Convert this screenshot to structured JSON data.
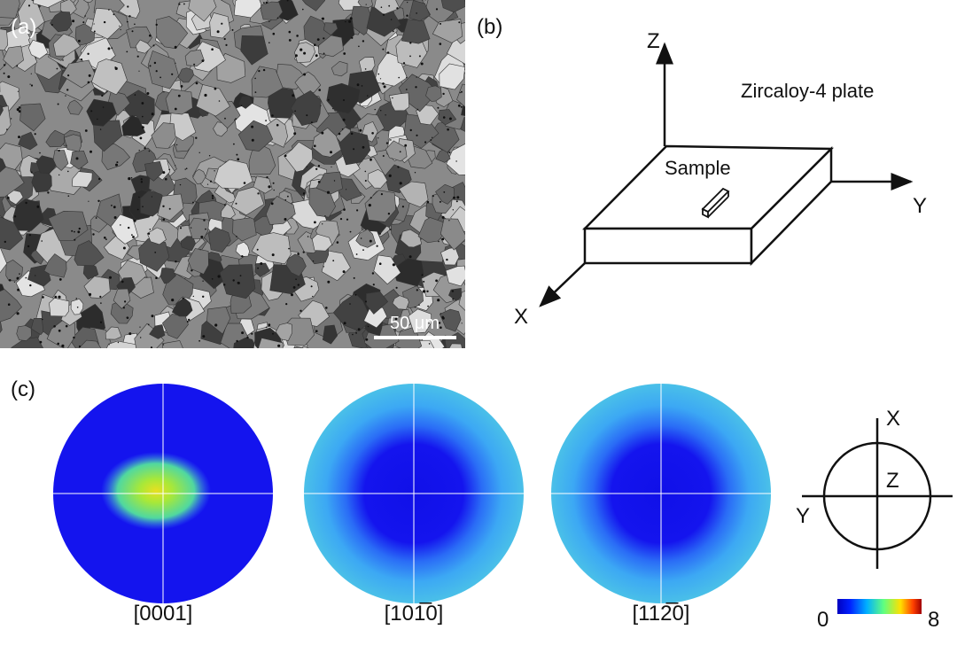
{
  "panel_a": {
    "label": "(a)",
    "scale_bar": "50 μm"
  },
  "panel_b": {
    "label": "(b)",
    "plate": "Zircaloy-4 plate",
    "sample": "Sample",
    "axes": {
      "x": "X",
      "y": "Y",
      "z": "Z"
    }
  },
  "panel_c": {
    "label": "(c)",
    "pole_figures": [
      "[0001]",
      "[101̅0]",
      "[112̅0]"
    ],
    "reference": {
      "x": "X",
      "y": "Y",
      "z": "Z"
    },
    "colorbar": {
      "min": 0,
      "max": 8
    }
  }
}
